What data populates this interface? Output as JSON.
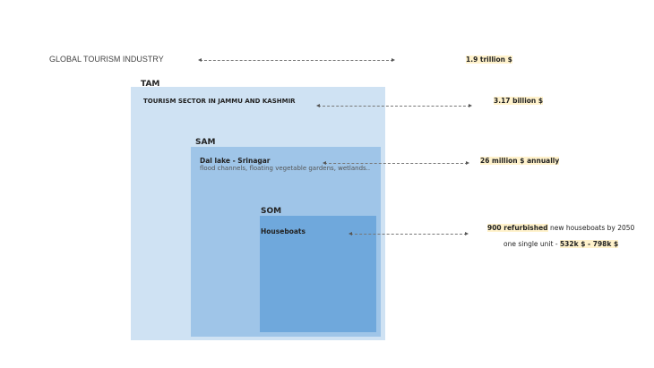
{
  "colors": {
    "tam": "#cfe2f3",
    "sam": "#9fc5e8",
    "som": "#6fa8dc",
    "highlight": "#fff2cc"
  },
  "global": {
    "label": "GLOBAL TOURISM INDUSTRY",
    "value": "1.9 trillion $"
  },
  "tam": {
    "tag": "TAM",
    "label": "TOURISM SECTOR IN JAMMU AND KASHMIR",
    "value": "3.17 billion $"
  },
  "sam": {
    "tag": "SAM",
    "label": "Dal lake -  Srinagar",
    "sublabel": "flood channels, floating vegetable gardens, wetlands..",
    "value": "26 million $ annually"
  },
  "som": {
    "tag": "SOM",
    "label": "Houseboats",
    "value_highlight": "900 refurbished",
    "value_rest": " new houseboats by 2050",
    "unit_prefix": "one single unit - ",
    "unit_value": "532k $ - 798k $"
  }
}
